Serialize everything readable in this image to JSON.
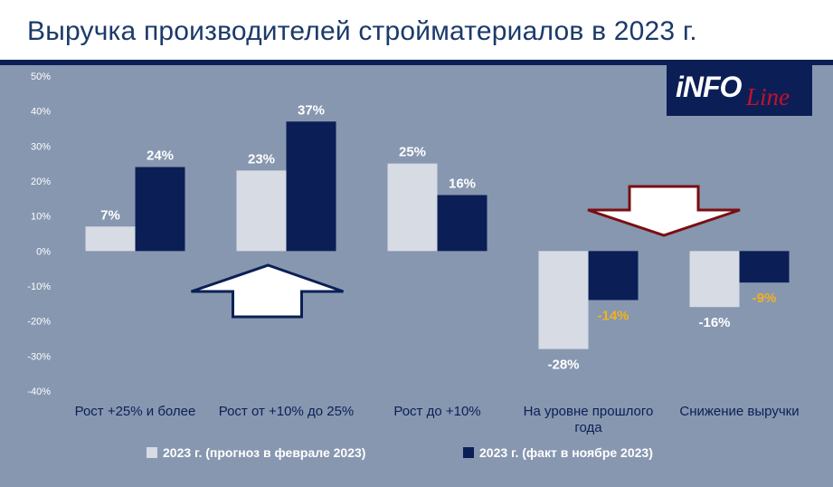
{
  "title": "Выручка производителей стройматериалов в 2023 г.",
  "logo": {
    "text_main": "iNFO",
    "text_script": "Line"
  },
  "colors": {
    "background": "#ffffff",
    "panel": "#8797b0",
    "title": "#1b3a6b",
    "title_bar": "#0b1f56",
    "series_forecast": "#d6dbe4",
    "series_fact": "#0b1f56",
    "label_default": "#ffffff",
    "label_highlight": "#f2b21c",
    "arrow_up_outline": "#0b1f56",
    "arrow_down_outline": "#7a0f12",
    "axis_text": "#ffffff",
    "category_text": "#0b1f56"
  },
  "legend": [
    {
      "label": "2023 г. (прогноз в феврале 2023)",
      "color": "#d6dbe4"
    },
    {
      "label": "2023 г. (факт в ноябре 2023)",
      "color": "#0b1f56"
    }
  ],
  "chart_data": {
    "type": "bar",
    "categories": [
      [
        "Рост +25% и более"
      ],
      [
        "Рост от +10% до 25%"
      ],
      [
        "Рост до +10%"
      ],
      [
        "На уровне прошлого",
        "года"
      ],
      [
        "Снижение выручки"
      ]
    ],
    "series": [
      {
        "name": "2023 г. (прогноз в феврале 2023)",
        "values": [
          7,
          23,
          25,
          -28,
          -16
        ],
        "labels": [
          "7%",
          "23%",
          "25%",
          "-28%",
          "-16%"
        ]
      },
      {
        "name": "2023 г. (факт в ноябре 2023)",
        "values": [
          24,
          37,
          16,
          -14,
          -9
        ],
        "labels": [
          "24%",
          "37%",
          "16%",
          "-14%",
          "-9%"
        ]
      }
    ],
    "ylim": [
      -40,
      50
    ],
    "yticks": [
      50,
      40,
      30,
      20,
      10,
      0,
      -10,
      -20,
      -30,
      -40
    ],
    "ytick_labels": [
      "50%",
      "40%",
      "30%",
      "20%",
      "10%",
      "0%",
      "-10%",
      "-20%",
      "-30%",
      "-40%"
    ],
    "grid": false,
    "legend_position": "bottom",
    "annotations": [
      {
        "type": "arrow-up",
        "category_index": 1
      },
      {
        "type": "arrow-down",
        "category_index": 3.5
      }
    ]
  }
}
